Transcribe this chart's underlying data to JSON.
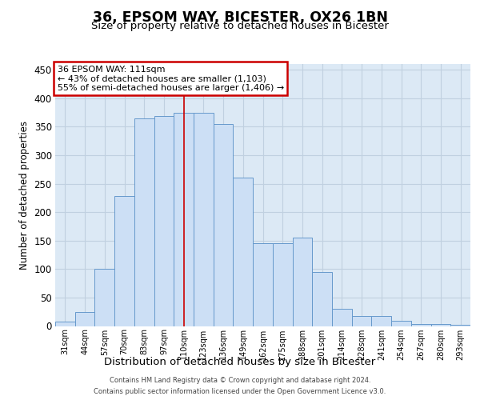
{
  "title_line1": "36, EPSOM WAY, BICESTER, OX26 1BN",
  "title_line2": "Size of property relative to detached houses in Bicester",
  "xlabel": "Distribution of detached houses by size in Bicester",
  "ylabel": "Number of detached properties",
  "categories": [
    "31sqm",
    "44sqm",
    "57sqm",
    "70sqm",
    "83sqm",
    "97sqm",
    "110sqm",
    "123sqm",
    "136sqm",
    "149sqm",
    "162sqm",
    "175sqm",
    "188sqm",
    "201sqm",
    "214sqm",
    "228sqm",
    "241sqm",
    "254sqm",
    "267sqm",
    "280sqm",
    "293sqm"
  ],
  "values": [
    8,
    25,
    100,
    228,
    365,
    368,
    375,
    375,
    355,
    260,
    145,
    145,
    155,
    95,
    30,
    18,
    18,
    9,
    3,
    3,
    2
  ],
  "bar_color": "#ccdff5",
  "bar_edge_color": "#6699cc",
  "vline_color": "#cc0000",
  "vline_x_index": 6,
  "annotation_line1": "36 EPSOM WAY: 111sqm",
  "annotation_line2": "← 43% of detached houses are smaller (1,103)",
  "annotation_line3": "55% of semi-detached houses are larger (1,406) →",
  "annotation_box_facecolor": "#ffffff",
  "annotation_box_edgecolor": "#cc0000",
  "ylim": [
    0,
    460
  ],
  "yticks": [
    0,
    50,
    100,
    150,
    200,
    250,
    300,
    350,
    400,
    450
  ],
  "bg_color": "#dce9f5",
  "grid_color": "#c0d0e0",
  "footer_line1": "Contains HM Land Registry data © Crown copyright and database right 2024.",
  "footer_line2": "Contains public sector information licensed under the Open Government Licence v3.0."
}
